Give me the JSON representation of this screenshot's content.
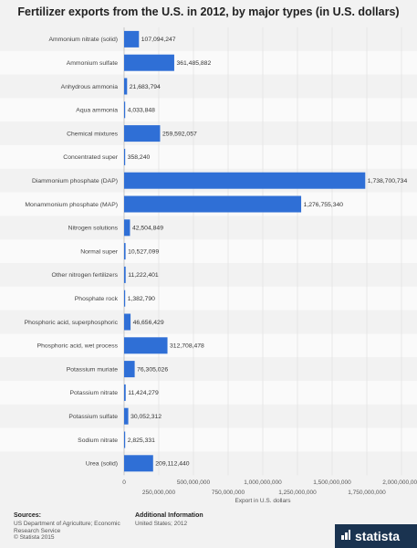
{
  "title": "Fertilizer exports from the U.S. in 2012, by major types (in U.S. dollars)",
  "chart_data": {
    "type": "bar",
    "orientation": "horizontal",
    "title": "Fertilizer exports from the U.S. in 2012, by major types (in U.S. dollars)",
    "xlabel": "Export in U.S. dollars",
    "ylabel": "",
    "xlim": [
      0,
      2000000000
    ],
    "bar_color": "#2f6fd6",
    "categories": [
      "Ammonium nitrate (solid)",
      "Ammonium sulfate",
      "Anhydrous ammonia",
      "Aqua ammonia",
      "Chemical mixtures",
      "Concentrated super",
      "Diammonium phosphate (DAP)",
      "Monammonium phosphate (MAP)",
      "Nitrogen solutions",
      "Normal super",
      "Other nitrogen fertilizers",
      "Phosphate rock",
      "Phosphoric acid, superphosphoric",
      "Phosphoric acid, wet process",
      "Potassium muriate",
      "Potassium nitrate",
      "Potassium sulfate",
      "Sodium nitrate",
      "Urea (solid)"
    ],
    "values": [
      107094247,
      361485882,
      21683794,
      4033848,
      259592057,
      358240,
      1738700734,
      1276755340,
      42504849,
      10527099,
      11222401,
      1382790,
      46656429,
      312708478,
      76305026,
      11424279,
      30052312,
      2825331,
      209112440
    ],
    "value_labels": [
      "107,094,247",
      "361,485,882",
      "21,683,794",
      "4,033,848",
      "259,592,057",
      "358,240",
      "1,738,700,734",
      "1,276,755,340",
      "42,504,849",
      "10,527,099",
      "11,222,401",
      "1,382,790",
      "46,656,429",
      "312,708,478",
      "76,305,026",
      "11,424,279",
      "30,052,312",
      "2,825,331",
      "209,112,440"
    ],
    "ticks": [
      0,
      250000000,
      500000000,
      750000000,
      1000000000,
      1250000000,
      1500000000,
      1750000000,
      2000000000
    ],
    "tick_labels": [
      "0",
      "250,000,000",
      "500,000,000",
      "750,000,000",
      "1,000,000,000",
      "1,250,000,000",
      "1,500,000,000",
      "1,750,000,000",
      "2,000,000,000"
    ],
    "grid": true
  },
  "footer": {
    "sources_label": "Sources:",
    "sources_text": "US Department of Agriculture; Economic Research Service",
    "copyright": "© Statista 2015",
    "additional_label": "Additional Information",
    "additional_text": "United States; 2012",
    "brand": "statista"
  }
}
